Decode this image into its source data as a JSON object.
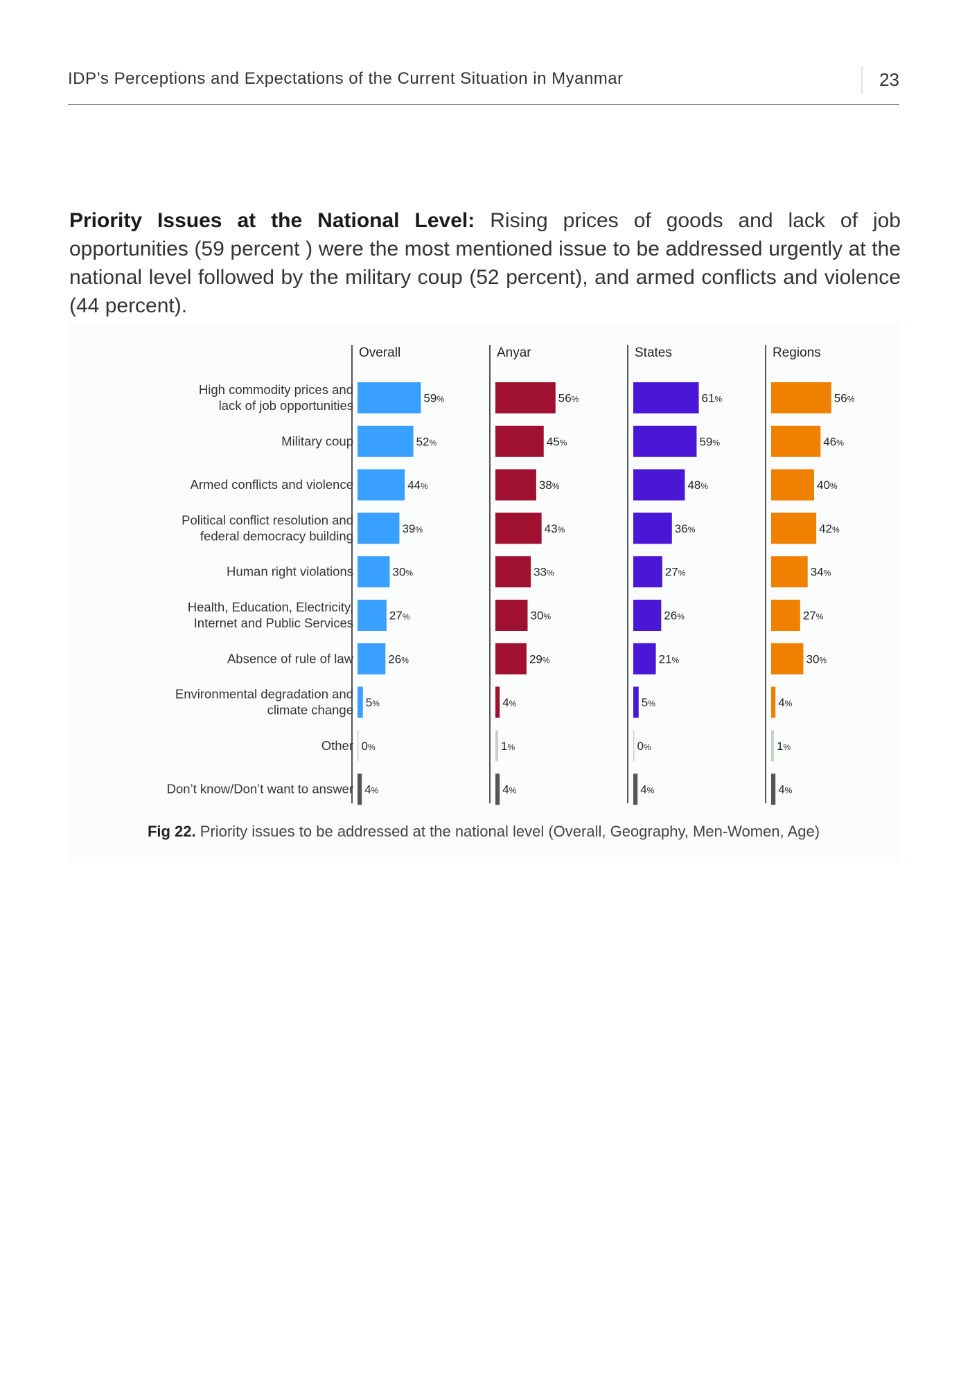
{
  "header": {
    "title": "IDP’s Perceptions and Expectations of the Current Situation in Myanmar",
    "page_number": "23"
  },
  "intro": {
    "lead": "Priority Issues at the National Level:",
    "text": " Rising prices of goods and lack of job opportunities (59 percent ) were the most mentioned issue to be addressed urgently at the national level followed by the military coup (52 percent), and armed conflicts and violence (44 percent)."
  },
  "figure": {
    "caption_label": "Fig 22.",
    "caption_text": " Priority issues to be addressed at the national level (Overall, Geography, Men-Women, Age)"
  },
  "chart_data": {
    "type": "bar",
    "orientation": "horizontal",
    "value_suffix": "%",
    "categories": [
      [
        "High commodity prices and",
        "lack of job opportunities"
      ],
      [
        "Military coup"
      ],
      [
        "Armed conflicts and violence"
      ],
      [
        "Political conflict resolution and",
        "federal democracy building"
      ],
      [
        "Human right violations"
      ],
      [
        "Health, Education, Electricity,",
        "Internet and Public Services"
      ],
      [
        "Absence of rule of law"
      ],
      [
        "Environmental degradation and",
        "climate change"
      ],
      [
        "Other"
      ],
      [
        "Don’t know/Don’t want to answer"
      ]
    ],
    "series": [
      {
        "name": "Overall",
        "color": "#3aa0ff",
        "values": [
          59,
          52,
          44,
          39,
          30,
          27,
          26,
          5,
          0,
          4
        ]
      },
      {
        "name": "Anyar",
        "color": "#a01131",
        "values": [
          56,
          45,
          38,
          43,
          33,
          30,
          29,
          4,
          1,
          4
        ]
      },
      {
        "name": "States",
        "color": "#4a17d6",
        "values": [
          61,
          59,
          48,
          36,
          27,
          26,
          21,
          5,
          0,
          4
        ]
      },
      {
        "name": "Regions",
        "color": "#f08000",
        "values": [
          56,
          46,
          40,
          42,
          34,
          27,
          30,
          4,
          1,
          4
        ]
      }
    ],
    "special_colors": {
      "other": "#c8d2c0",
      "dont_know": "#555555"
    },
    "xlim": [
      0,
      100
    ],
    "grid": false,
    "legend": "none"
  }
}
